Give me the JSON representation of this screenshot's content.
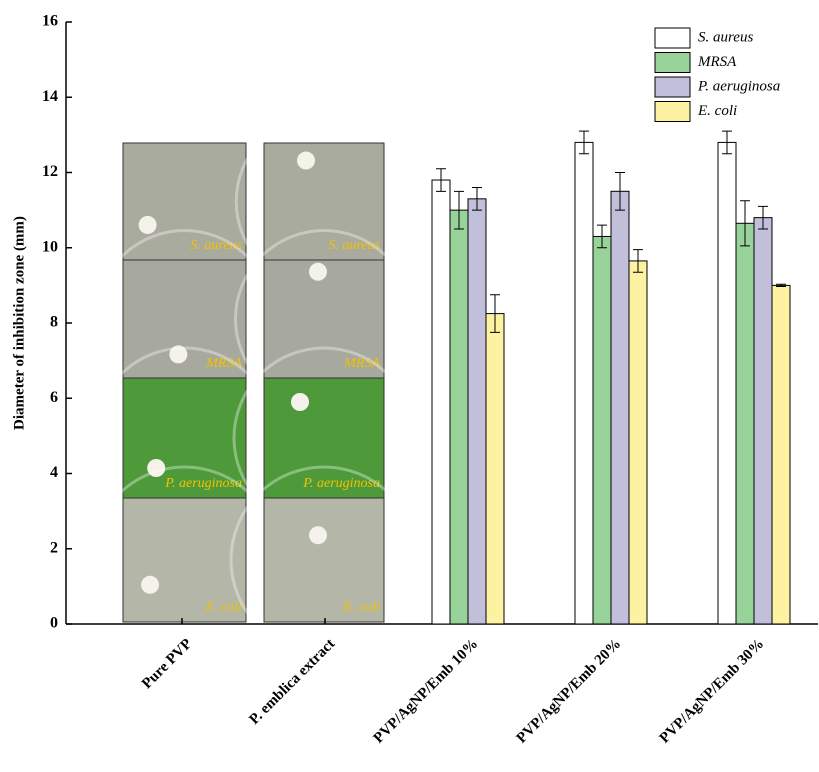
{
  "chart_data": {
    "type": "bar",
    "ylabel": "Diameter of inhibition zone (mm)",
    "categories": [
      "Pure PVP",
      "P. emblica extract",
      "PVP/AgNP/Emb 10%",
      "PVP/AgNP/Emb 20%",
      "PVP/AgNP/Emb 30%"
    ],
    "series": [
      {
        "name": "S. aureus",
        "color": "#ffffff",
        "values": [
          null,
          null,
          11.8,
          12.8,
          12.8
        ],
        "errors": [
          null,
          null,
          0.3,
          0.3,
          0.3
        ]
      },
      {
        "name": "MRSA",
        "color": "#98d39a",
        "values": [
          null,
          null,
          11.0,
          10.3,
          10.65
        ],
        "errors": [
          null,
          null,
          0.5,
          0.3,
          0.6
        ]
      },
      {
        "name": "P. aeruginosa",
        "color": "#c2bfdb",
        "values": [
          null,
          null,
          11.3,
          11.5,
          10.8
        ],
        "errors": [
          null,
          null,
          0.3,
          0.5,
          0.3
        ]
      },
      {
        "name": "E. coli",
        "color": "#fdf1a2",
        "values": [
          null,
          null,
          8.25,
          9.65,
          9.0
        ],
        "errors": [
          null,
          null,
          0.5,
          0.3,
          0.03
        ]
      }
    ],
    "panel_labels": [
      [
        "S. aureus",
        "MRSA",
        "P. aeruginosa",
        "E. coli"
      ],
      [
        "S. aureus",
        "MRSA",
        "P. aeruginosa",
        "E. coli"
      ]
    ],
    "ylim": [
      0,
      16
    ],
    "yticks": [
      0,
      2,
      4,
      6,
      8,
      10,
      12,
      14,
      16
    ],
    "legend": "upper-right"
  }
}
